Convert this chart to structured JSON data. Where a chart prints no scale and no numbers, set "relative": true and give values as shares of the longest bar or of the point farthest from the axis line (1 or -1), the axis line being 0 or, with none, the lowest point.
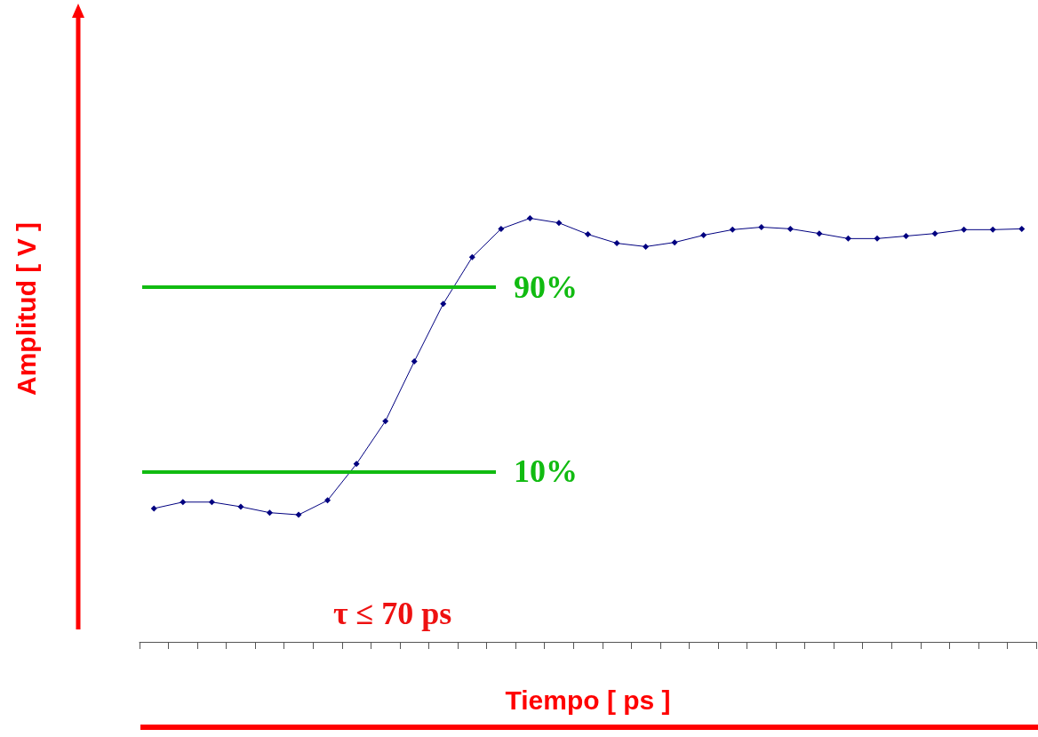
{
  "chart_data": {
    "type": "line",
    "relative": true,
    "xlabel": "Tiempo [ ps ]",
    "ylabel": "Amplitud [ V ]",
    "categories": [
      null,
      null,
      null,
      null,
      null,
      null,
      null,
      null,
      null,
      null,
      null,
      null,
      null,
      null,
      null,
      null,
      null,
      null,
      null,
      null,
      null,
      null,
      null,
      null,
      null,
      null,
      null,
      null,
      null,
      null,
      null
    ],
    "series": [
      {
        "color": "#000080",
        "values": [
          0.315,
          0.33,
          0.33,
          0.319,
          0.305,
          0.3,
          0.334,
          0.42,
          0.521,
          0.662,
          0.798,
          0.908,
          0.975,
          1,
          0.989,
          0.962,
          0.941,
          0.933,
          0.943,
          0.96,
          0.973,
          0.979,
          0.975,
          0.964,
          0.952,
          0.952,
          0.958,
          0.964,
          0.973,
          0.973,
          0.975
        ]
      }
    ],
    "marker": "diamond",
    "line_style": "solid",
    "grid": false,
    "ref_lines": [
      {
        "axis": "y",
        "value": 0.838,
        "color": "#11bb11"
      },
      {
        "axis": "y",
        "value": 0.401,
        "color": "#11bb11"
      }
    ],
    "annotations": [
      "90%",
      "10%",
      "τ ≤ 70 ps"
    ]
  }
}
